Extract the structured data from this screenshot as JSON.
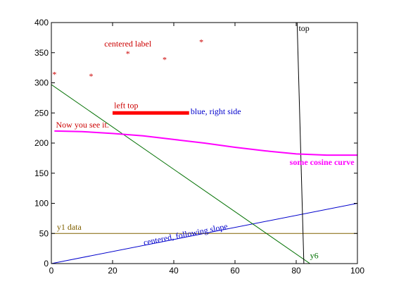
{
  "chart_data": {
    "type": "line",
    "xlim": [
      0,
      100
    ],
    "ylim": [
      0,
      400
    ],
    "x_ticks": [
      0,
      20,
      40,
      60,
      80,
      100
    ],
    "y_ticks": [
      0,
      50,
      100,
      150,
      200,
      250,
      300,
      350,
      400
    ],
    "grid": false,
    "series": [
      {
        "kind": "line",
        "color": "#0000cc",
        "width": 1,
        "points": [
          [
            0,
            0
          ],
          [
            100,
            100
          ]
        ]
      },
      {
        "kind": "line",
        "color": "#806000",
        "width": 1,
        "points": [
          [
            0,
            50
          ],
          [
            100,
            50
          ]
        ]
      },
      {
        "kind": "line",
        "color": "#007000",
        "width": 1,
        "points": [
          [
            0,
            297
          ],
          [
            84.5,
            0
          ]
        ]
      },
      {
        "kind": "line",
        "color": "#000000",
        "width": 1,
        "points": [
          [
            80.3,
            400
          ],
          [
            82.5,
            0
          ]
        ]
      },
      {
        "kind": "line",
        "color": "#ff00ff",
        "width": 2,
        "points": [
          [
            1,
            220
          ],
          [
            10,
            219
          ],
          [
            20,
            216
          ],
          [
            30,
            212
          ],
          [
            40,
            206
          ],
          [
            50,
            200
          ],
          [
            60,
            193
          ],
          [
            70,
            187
          ],
          [
            80,
            182
          ],
          [
            90,
            180
          ],
          [
            100,
            180
          ]
        ]
      },
      {
        "kind": "line",
        "color": "#ff0000",
        "width": 5,
        "points": [
          [
            20,
            250
          ],
          [
            45,
            250
          ]
        ]
      },
      {
        "kind": "scatter",
        "color": "#cc0000",
        "marker": "*",
        "points": [
          [
            1,
            315
          ],
          [
            13,
            312
          ],
          [
            25,
            350
          ],
          [
            37,
            340
          ],
          [
            49,
            369
          ]
        ]
      }
    ],
    "annotations": [
      {
        "text": "centered label",
        "x": 25,
        "y": 360,
        "anchor": "middle",
        "color": "#cc0000"
      },
      {
        "text": "left top",
        "x": 20.5,
        "y": 258,
        "anchor": "start",
        "color": "#cc0000"
      },
      {
        "text": "blue, right side",
        "x": 45.5,
        "y": 248,
        "anchor": "start",
        "color": "#0000cc"
      },
      {
        "text": "Now you see it.",
        "x": 1.5,
        "y": 226,
        "anchor": "start",
        "color": "#cc0000"
      },
      {
        "text": "some cosine curve",
        "x": 99,
        "y": 164,
        "anchor": "end",
        "color": "#ff00ff",
        "bold": true
      },
      {
        "text": "top",
        "x": 80.8,
        "y": 386,
        "anchor": "start",
        "color": "#000000"
      },
      {
        "text": "y1 data",
        "x": 1.8,
        "y": 56,
        "anchor": "start",
        "color": "#806000"
      },
      {
        "text": "centered, following slope",
        "x": 44,
        "y": 44,
        "anchor": "middle",
        "color": "#0000cc",
        "slope_of": [
          [
            0,
            0
          ],
          [
            100,
            100
          ]
        ]
      },
      {
        "text": "y6",
        "x": 84.5,
        "y": 9,
        "anchor": "start",
        "color": "#007000"
      }
    ]
  }
}
